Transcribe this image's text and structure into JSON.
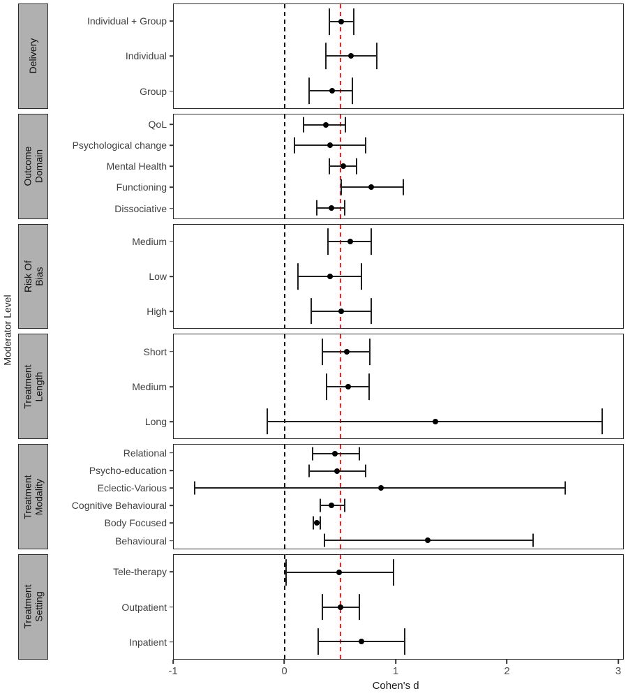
{
  "chart_data": {
    "type": "scatter",
    "subtype": "forest-plot-errorbars",
    "title": "",
    "xlabel": "Cohen's d",
    "ylabel": "Moderator Level",
    "xlim": [
      -1,
      3.05
    ],
    "x_ticks": [
      -1,
      0,
      1,
      2,
      3
    ],
    "grid": false,
    "legend": false,
    "reference_lines": [
      {
        "x": 0,
        "style": "dashed",
        "color": "#000000",
        "name": "zero-effect"
      },
      {
        "x": 0.5,
        "style": "dashed",
        "color": "#ff1f1f",
        "name": "pooled-effect"
      }
    ],
    "panels": [
      {
        "facet": "Delivery",
        "rows": [
          {
            "label": "Individual + Group",
            "d": 0.51,
            "ci_low": 0.4,
            "ci_high": 0.62
          },
          {
            "label": "Individual",
            "d": 0.6,
            "ci_low": 0.37,
            "ci_high": 0.83
          },
          {
            "label": "Group",
            "d": 0.43,
            "ci_low": 0.22,
            "ci_high": 0.61
          }
        ]
      },
      {
        "facet": "Outcome\nDomain",
        "rows": [
          {
            "label": "QoL",
            "d": 0.37,
            "ci_low": 0.17,
            "ci_high": 0.55
          },
          {
            "label": "Psychological change",
            "d": 0.41,
            "ci_low": 0.09,
            "ci_high": 0.73
          },
          {
            "label": "Mental Health",
            "d": 0.53,
            "ci_low": 0.4,
            "ci_high": 0.65
          },
          {
            "label": "Functioning",
            "d": 0.78,
            "ci_low": 0.51,
            "ci_high": 1.07
          },
          {
            "label": "Dissociative",
            "d": 0.42,
            "ci_low": 0.29,
            "ci_high": 0.54
          }
        ]
      },
      {
        "facet": "Risk Of\nBias",
        "rows": [
          {
            "label": "Medium",
            "d": 0.59,
            "ci_low": 0.39,
            "ci_high": 0.78
          },
          {
            "label": "Low",
            "d": 0.41,
            "ci_low": 0.12,
            "ci_high": 0.69
          },
          {
            "label": "High",
            "d": 0.51,
            "ci_low": 0.24,
            "ci_high": 0.78
          }
        ]
      },
      {
        "facet": "Treatment\nLength",
        "rows": [
          {
            "label": "Short",
            "d": 0.56,
            "ci_low": 0.34,
            "ci_high": 0.77
          },
          {
            "label": "Medium",
            "d": 0.57,
            "ci_low": 0.38,
            "ci_high": 0.76
          },
          {
            "label": "Long",
            "d": 1.36,
            "ci_low": -0.16,
            "ci_high": 2.86
          }
        ]
      },
      {
        "facet": "Treatment\nModality",
        "rows": [
          {
            "label": "Relational",
            "d": 0.45,
            "ci_low": 0.25,
            "ci_high": 0.67
          },
          {
            "label": "Psycho-education",
            "d": 0.47,
            "ci_low": 0.22,
            "ci_high": 0.73
          },
          {
            "label": "Eclectic-Various",
            "d": 0.87,
            "ci_low": -0.81,
            "ci_high": 2.53
          },
          {
            "label": "Cognitive Behavioural",
            "d": 0.42,
            "ci_low": 0.32,
            "ci_high": 0.54
          },
          {
            "label": "Body Focused",
            "d": 0.29,
            "ci_low": 0.26,
            "ci_high": 0.32
          },
          {
            "label": "Behavioural",
            "d": 1.29,
            "ci_low": 0.36,
            "ci_high": 2.24
          }
        ]
      },
      {
        "facet": "Treatment\nSetting",
        "rows": [
          {
            "label": "Tele-therapy",
            "d": 0.49,
            "ci_low": 0.01,
            "ci_high": 0.98
          },
          {
            "label": "Outpatient",
            "d": 0.5,
            "ci_low": 0.34,
            "ci_high": 0.67
          },
          {
            "label": "Inpatient",
            "d": 0.69,
            "ci_low": 0.3,
            "ci_high": 1.08
          }
        ]
      }
    ],
    "colors": {
      "strip_fill": "#b0b0b0",
      "panel_border": "#2b2b2b",
      "error_bar": "#1f1f1f",
      "point": "#000000",
      "zero_line": "#000000",
      "pooled_line": "#ff1f1f",
      "axis_text": "#4d4d4d"
    }
  }
}
